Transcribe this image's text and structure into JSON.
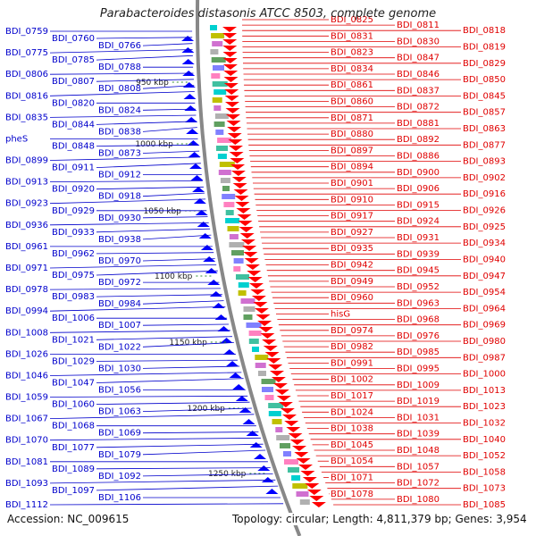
{
  "title": "Parabacteroides distasonis ATCC 8503, complete genome",
  "footer": {
    "accession": "Accession: NC_009615",
    "topology": "Topology: circular; Length: 4,811,379 bp; Genes: 3,954"
  },
  "colors": {
    "left_labels": "#0000cc",
    "right_labels": "#e00000",
    "backbone": "#888888",
    "tick": "#2e8b2e",
    "left_arrows": "#0000ff",
    "right_arrows": "#ff0000"
  },
  "kbp_ticks": [
    "950 kbp",
    "1000 kbp",
    "1050 kbp",
    "1100 kbp",
    "1150 kbp",
    "1200 kbp",
    "1250 kbp"
  ],
  "left_labels": [
    "BDI_0759",
    "BDI_0760",
    "BDI_0766",
    "BDI_0775",
    "BDI_0785",
    "BDI_0788",
    "BDI_0806",
    "BDI_0807",
    "BDI_0808",
    "BDI_0816",
    "BDI_0820",
    "BDI_0824",
    "BDI_0835",
    "BDI_0844",
    "BDI_0838",
    "pheS",
    "BDI_0848",
    "BDI_0873",
    "BDI_0899",
    "BDI_0911",
    "BDI_0912",
    "BDI_0913",
    "BDI_0920",
    "BDI_0918",
    "BDI_0923",
    "BDI_0929",
    "BDI_0930",
    "BDI_0936",
    "BDI_0933",
    "BDI_0938",
    "BDI_0961",
    "BDI_0962",
    "BDI_0970",
    "BDI_0971",
    "BDI_0975",
    "BDI_0972",
    "BDI_0978",
    "BDI_0983",
    "BDI_0984",
    "BDI_0994",
    "BDI_1006",
    "BDI_1007",
    "BDI_1008",
    "BDI_1021",
    "BDI_1022",
    "BDI_1026",
    "BDI_1029",
    "BDI_1030",
    "BDI_1046",
    "BDI_1047",
    "BDI_1056",
    "BDI_1059",
    "BDI_1060",
    "BDI_1063",
    "BDI_1067",
    "BDI_1068",
    "BDI_1069",
    "BDI_1070",
    "BDI_1077",
    "BDI_1079",
    "BDI_1081",
    "BDI_1089",
    "BDI_1092",
    "BDI_1093",
    "BDI_1097",
    "BDI_1106",
    "BDI_1112"
  ],
  "right_labels": [
    "BDI_0825",
    "BDI_0811",
    "BDI_0818",
    "BDI_0831",
    "BDI_0830",
    "BDI_0819",
    "BDI_0823",
    "BDI_0847",
    "BDI_0829",
    "BDI_0834",
    "BDI_0846",
    "BDI_0850",
    "BDI_0861",
    "BDI_0837",
    "BDI_0845",
    "BDI_0860",
    "BDI_0872",
    "BDI_0857",
    "BDI_0871",
    "BDI_0881",
    "BDI_0863",
    "BDI_0880",
    "BDI_0892",
    "BDI_0877",
    "BDI_0897",
    "BDI_0886",
    "BDI_0893",
    "BDI_0894",
    "BDI_0900",
    "BDI_0902",
    "BDI_0901",
    "BDI_0906",
    "BDI_0916",
    "BDI_0910",
    "BDI_0915",
    "BDI_0926",
    "BDI_0917",
    "BDI_0924",
    "BDI_0925",
    "BDI_0927",
    "BDI_0931",
    "BDI_0934",
    "BDI_0935",
    "BDI_0939",
    "BDI_0940",
    "BDI_0942",
    "BDI_0945",
    "BDI_0947",
    "BDI_0949",
    "BDI_0952",
    "BDI_0954",
    "BDI_0960",
    "BDI_0963",
    "BDI_0964",
    "hisG",
    "BDI_0968",
    "BDI_0969",
    "BDI_0974",
    "BDI_0976",
    "BDI_0980",
    "BDI_0982",
    "BDI_0985",
    "BDI_0987",
    "BDI_0991",
    "BDI_0995",
    "BDI_1000",
    "BDI_1002",
    "BDI_1009",
    "BDI_1013",
    "BDI_1017",
    "BDI_1019",
    "BDI_1023",
    "BDI_1024",
    "BDI_1031",
    "BDI_1032",
    "BDI_1038",
    "BDI_1039",
    "BDI_1040",
    "BDI_1045",
    "BDI_1048",
    "BDI_1052",
    "BDI_1054",
    "BDI_1057",
    "BDI_1058",
    "BDI_1071",
    "BDI_1072",
    "BDI_1073",
    "BDI_1078",
    "BDI_1080",
    "BDI_1085"
  ]
}
